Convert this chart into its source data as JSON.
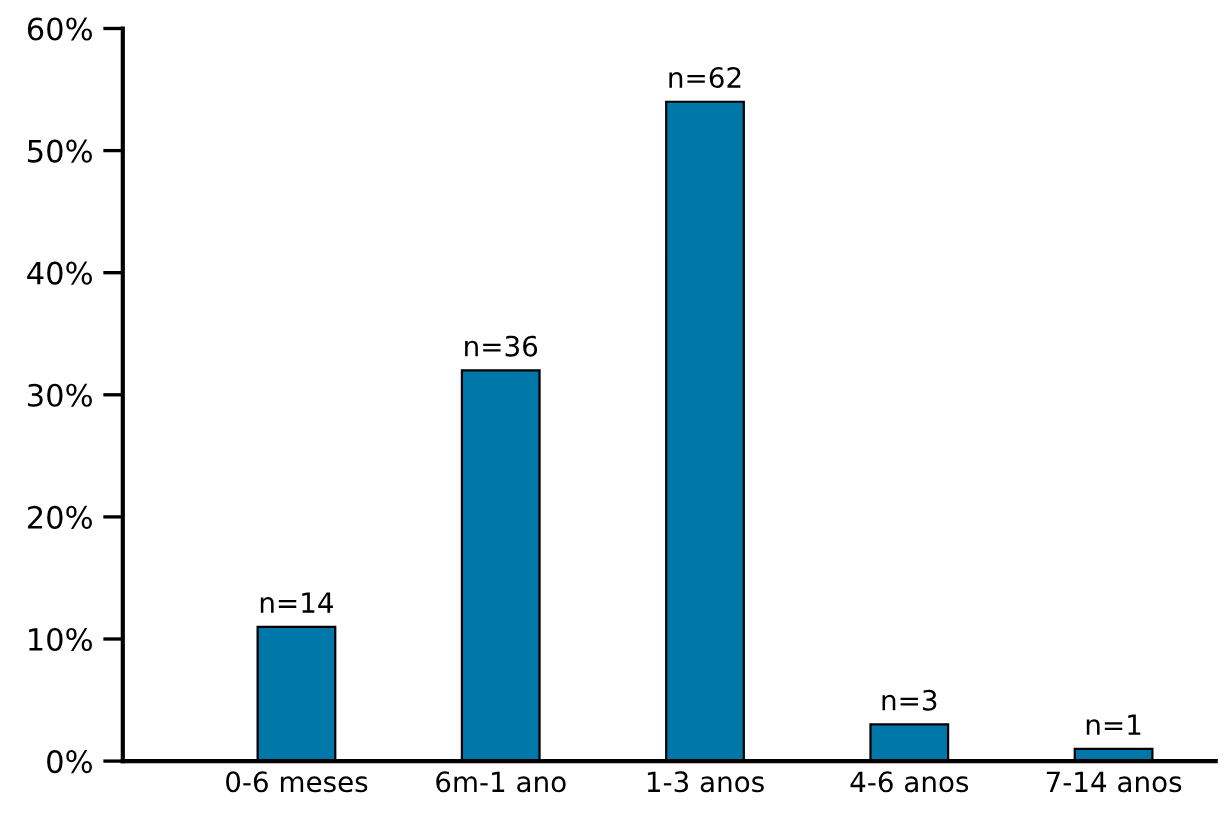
{
  "chart_data": {
    "type": "bar",
    "categories": [
      "0-6 meses",
      "6m-1 ano",
      "1-3 anos",
      "4-6 anos",
      "7-14 anos"
    ],
    "values": [
      11,
      32,
      54,
      3,
      1
    ],
    "annotations": [
      {
        "text": "n=14",
        "x": "0-6 meses",
        "y": 11
      },
      {
        "text": "n=36",
        "x": "6m-1 ano",
        "y": 32
      },
      {
        "text": "n=62",
        "x": "1-3 anos",
        "y": 54
      },
      {
        "text": "n=3",
        "x": "4-6 anos",
        "y": 3
      },
      {
        "text": "n=1",
        "x": "7-14 anos",
        "y": 1
      }
    ],
    "color": "#0077a9",
    "ylim": [
      0,
      60
    ],
    "yticks": [
      {
        "value": 0,
        "label": "0%"
      },
      {
        "value": 10,
        "label": "10%"
      },
      {
        "value": 20,
        "label": "20%"
      },
      {
        "value": 30,
        "label": "30%"
      },
      {
        "value": 40,
        "label": "40%"
      },
      {
        "value": 50,
        "label": "50%"
      },
      {
        "value": 60,
        "label": "60%"
      }
    ],
    "grid": false,
    "legend": false
  }
}
